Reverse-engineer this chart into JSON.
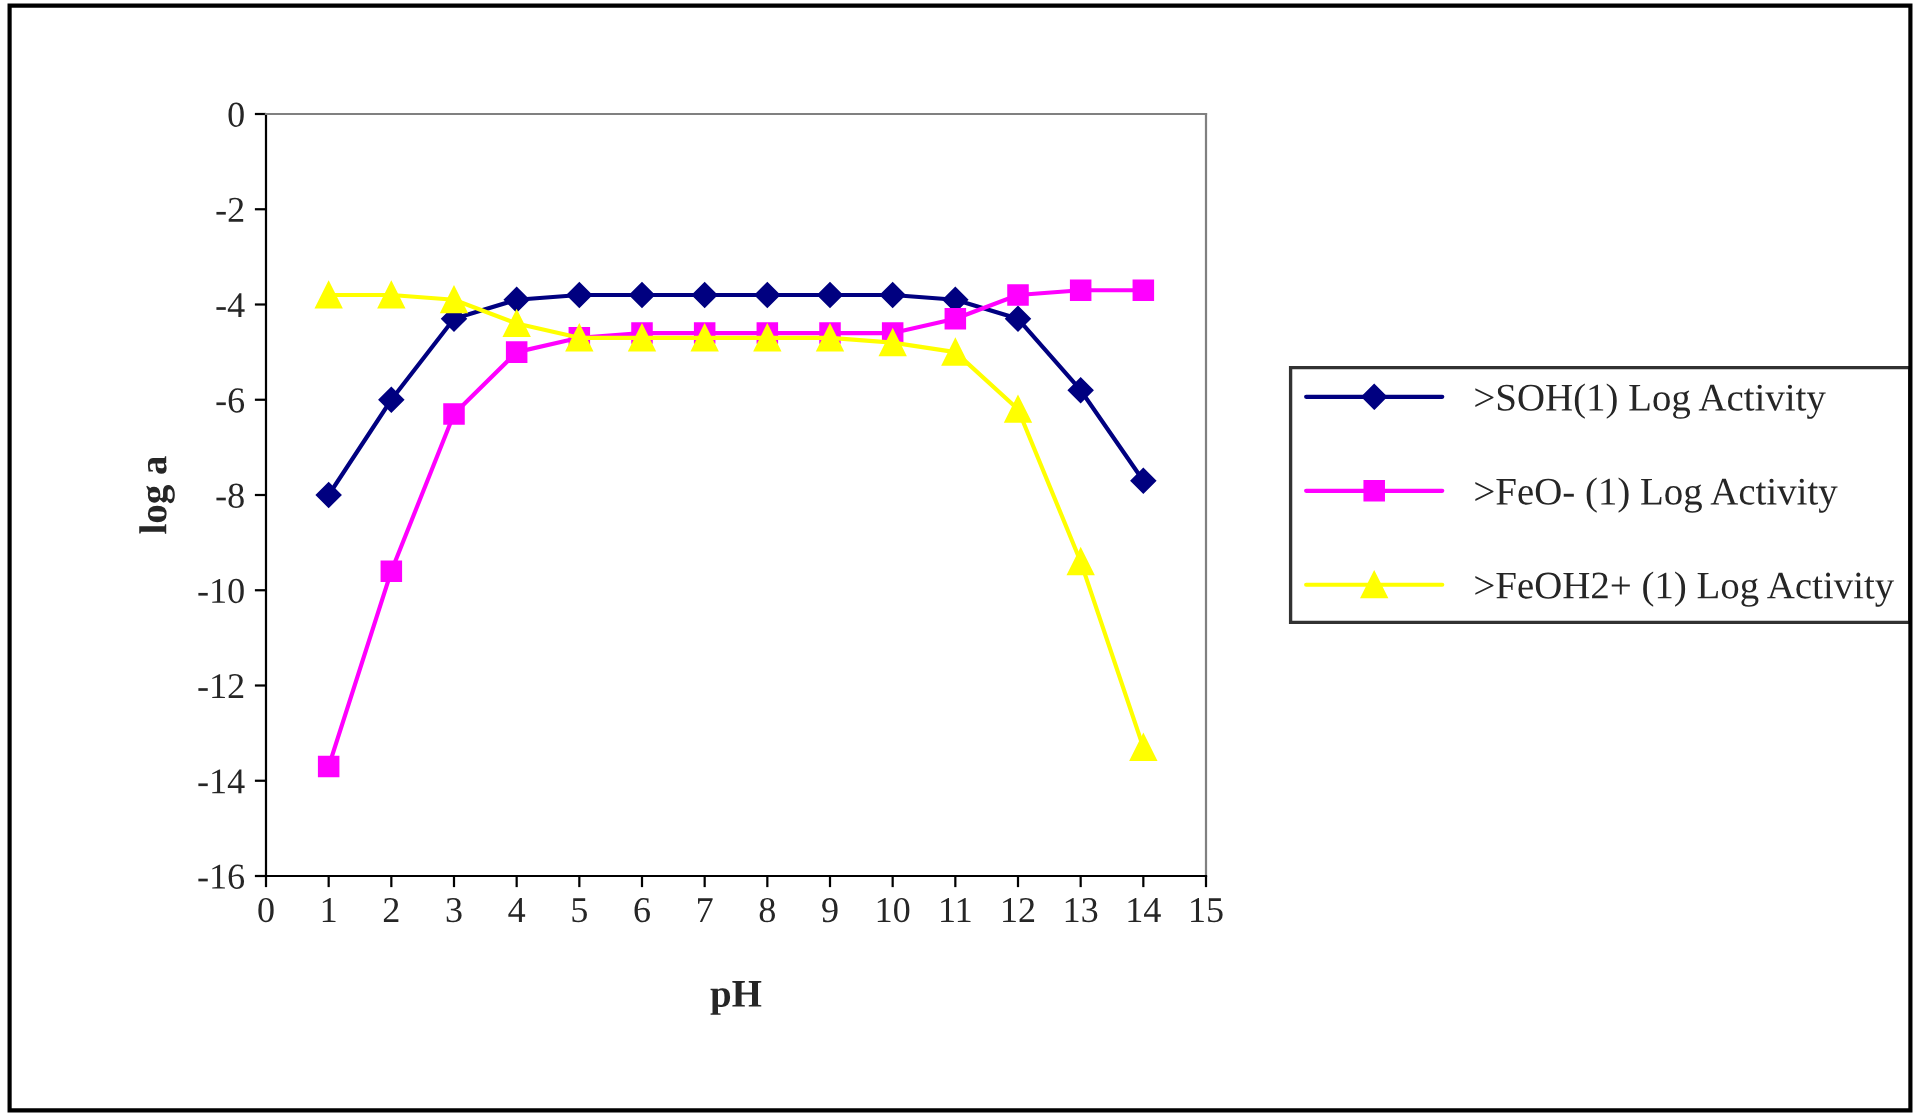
{
  "chart_data": {
    "type": "line",
    "xlabel": "pH",
    "ylabel": "log a",
    "x": [
      1,
      2,
      3,
      4,
      5,
      6,
      7,
      8,
      9,
      10,
      11,
      12,
      13,
      14
    ],
    "series": [
      {
        "name": ">SOH(1) Log Activity",
        "color": "#000080",
        "marker": "diamond",
        "values": [
          -8.0,
          -6.0,
          -4.3,
          -3.9,
          -3.8,
          -3.8,
          -3.8,
          -3.8,
          -3.8,
          -3.8,
          -3.9,
          -4.3,
          -5.8,
          -7.7
        ]
      },
      {
        "name": ">FeO- (1) Log Activity",
        "color": "#ff00ff",
        "marker": "square",
        "values": [
          -13.7,
          -9.6,
          -6.3,
          -5.0,
          -4.7,
          -4.6,
          -4.6,
          -4.6,
          -4.6,
          -4.6,
          -4.3,
          -3.8,
          -3.7,
          -3.7
        ]
      },
      {
        "name": ">FeOH2+ (1) Log Activity",
        "color": "#ffff00",
        "marker": "triangle",
        "values": [
          -3.8,
          -3.8,
          -3.9,
          -4.4,
          -4.7,
          -4.7,
          -4.7,
          -4.7,
          -4.7,
          -4.8,
          -5.0,
          -6.2,
          -9.4,
          -13.3
        ]
      }
    ],
    "xlim": [
      0,
      15
    ],
    "xticks": [
      0,
      1,
      2,
      3,
      4,
      5,
      6,
      7,
      8,
      9,
      10,
      11,
      12,
      13,
      14,
      15
    ],
    "ylim": [
      -16,
      0
    ],
    "yticks": [
      -16,
      -14,
      -12,
      -10,
      -8,
      -6,
      -4,
      -2,
      0
    ],
    "grid": false,
    "legend": "right",
    "line_style": "solid"
  }
}
